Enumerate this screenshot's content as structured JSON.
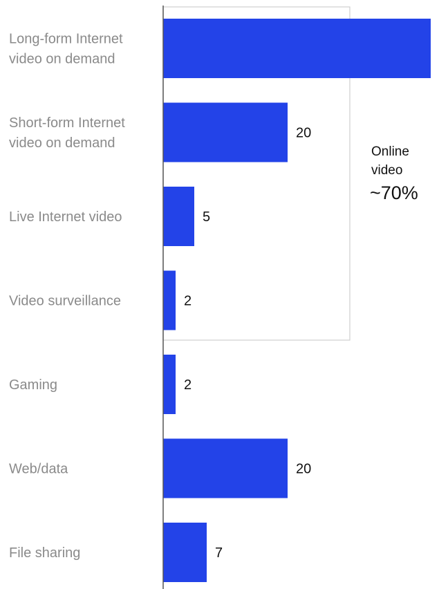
{
  "chart_data": {
    "type": "bar",
    "orientation": "horizontal",
    "categories": [
      [
        "Long-form Internet",
        "video on demand"
      ],
      [
        "Short-form Internet",
        "video on demand"
      ],
      [
        "Live Internet video"
      ],
      [
        "Video surveillance"
      ],
      [
        "Gaming"
      ],
      [
        "Web/data"
      ],
      [
        "File sharing"
      ]
    ],
    "values": [
      43,
      20,
      5,
      2,
      2,
      20,
      7
    ],
    "xlim": [
      0,
      50
    ],
    "grid": false,
    "bar_color": "#2343e8",
    "group": {
      "label_lines": [
        "Online",
        "video"
      ],
      "value": "~70%",
      "first_category": 0,
      "last_category": 3
    }
  }
}
